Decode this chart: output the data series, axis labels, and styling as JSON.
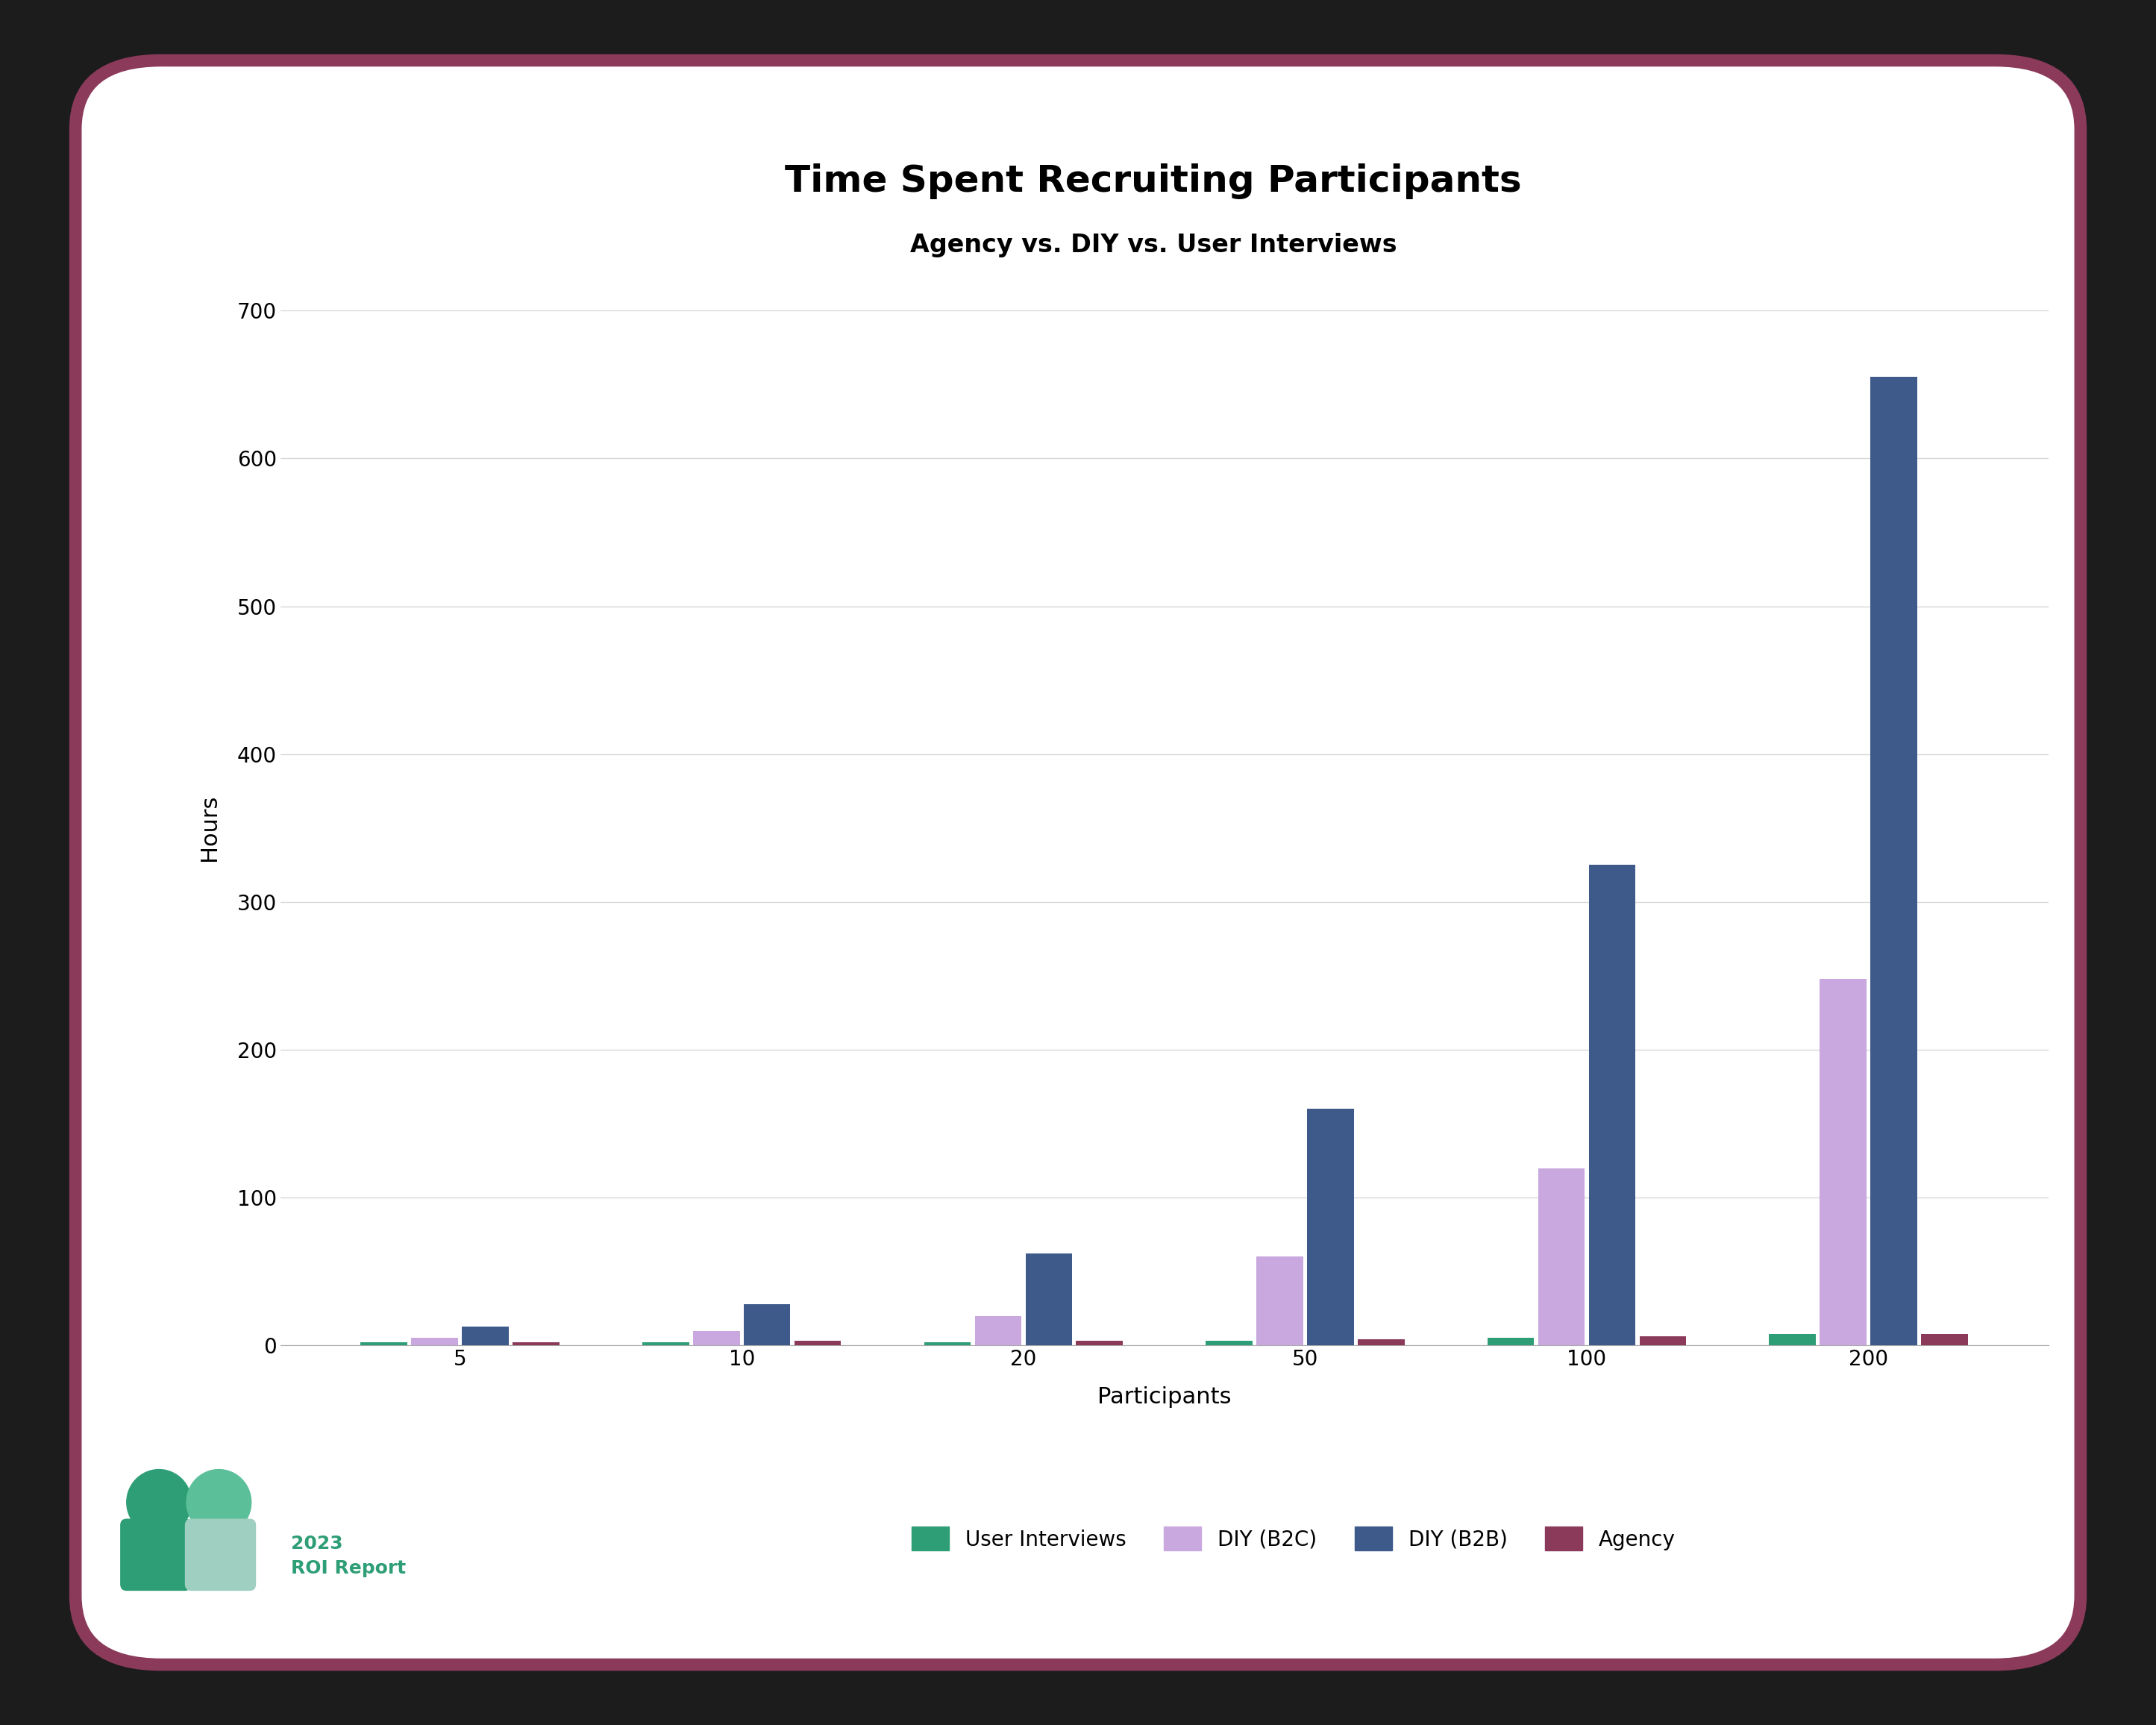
{
  "title": "Time Spent Recruiting Participants",
  "subtitle": "Agency vs. DIY vs. User Interviews",
  "xlabel": "Participants",
  "ylabel": "Hours",
  "categories": [
    "5",
    "10",
    "20",
    "50",
    "100",
    "200"
  ],
  "series": {
    "User Interviews": [
      2,
      2,
      2,
      3,
      5,
      8
    ],
    "DIY (B2C)": [
      5,
      10,
      20,
      60,
      120,
      248
    ],
    "DIY (B2B)": [
      13,
      28,
      62,
      160,
      325,
      655
    ],
    "Agency": [
      2,
      3,
      3,
      4,
      6,
      8
    ]
  },
  "colors": {
    "User Interviews": "#2E9E76",
    "DIY (B2C)": "#C9A8E0",
    "DIY (B2B)": "#3D5A8A",
    "Agency": "#8B3A5A"
  },
  "ylim": [
    0,
    700
  ],
  "yticks": [
    0,
    100,
    200,
    300,
    400,
    500,
    600,
    700
  ],
  "bar_width": 0.18,
  "outer_background": "#1C1C1C",
  "card_background": "#FFFFFF",
  "border_color": "#8B3A5A",
  "title_fontsize": 36,
  "subtitle_fontsize": 24,
  "axis_label_fontsize": 22,
  "tick_fontsize": 20,
  "legend_fontsize": 20,
  "grid_color": "#CCCCCC",
  "grid_alpha": 0.8,
  "logo_color_1": "#2E9E76",
  "logo_color_2": "#5BBF9A",
  "logo_color_3": "#9ECFC0",
  "logo_text_color": "#2E9E76",
  "logo_label": "2023\nROI Report"
}
